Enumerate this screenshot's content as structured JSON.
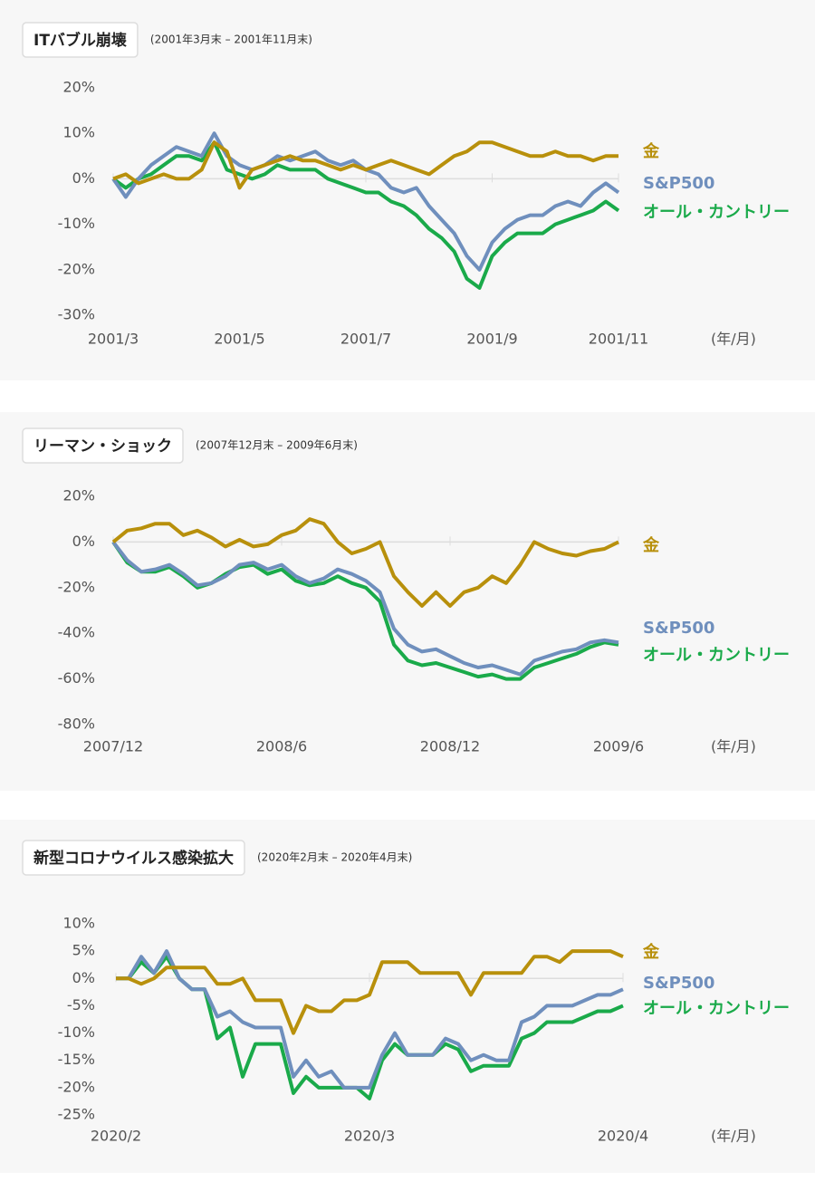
{
  "chart_data": [
    {
      "type": "line",
      "title": "ITバブル崩壊",
      "subtitle": "(2001年3月末 – 2001年11月末)",
      "xlabel": "(年/月)",
      "categories": [
        "2001/3",
        null,
        null,
        null,
        null,
        null,
        null,
        null,
        null,
        null,
        "2001/5",
        null,
        null,
        null,
        null,
        null,
        null,
        null,
        null,
        null,
        "2001/7",
        null,
        null,
        null,
        null,
        null,
        null,
        null,
        null,
        null,
        "2001/9",
        null,
        null,
        null,
        null,
        null,
        null,
        null,
        null,
        null,
        "2001/11"
      ],
      "ylim": [
        -30,
        20
      ],
      "yticks": [
        {
          "value": 20,
          "label": "20%"
        },
        {
          "value": 10,
          "label": "10%"
        },
        {
          "value": 0,
          "label": "0%"
        },
        {
          "value": -10,
          "label": "-10%"
        },
        {
          "value": -20,
          "label": "-20%"
        },
        {
          "value": -30,
          "label": "-30%"
        }
      ],
      "series": [
        {
          "name": "金",
          "color": "#b8900c",
          "values": [
            0,
            1,
            -1,
            0,
            1,
            0,
            0,
            2,
            8,
            6,
            -2,
            2,
            3,
            4,
            5,
            4,
            4,
            3,
            2,
            3,
            2,
            3,
            4,
            3,
            2,
            1,
            3,
            5,
            6,
            8,
            8,
            7,
            6,
            5,
            5,
            6,
            5,
            5,
            4,
            5,
            5
          ]
        },
        {
          "name": "S&P500",
          "color": "#6f8fbd",
          "values": [
            0,
            -4,
            0,
            3,
            5,
            7,
            6,
            5,
            10,
            5,
            3,
            2,
            3,
            5,
            4,
            5,
            6,
            4,
            3,
            4,
            2,
            1,
            -2,
            -3,
            -2,
            -6,
            -9,
            -12,
            -17,
            -20,
            -14,
            -11,
            -9,
            -8,
            -8,
            -6,
            -5,
            -6,
            -3,
            -1,
            -3
          ]
        },
        {
          "name": "オール・カントリー",
          "color": "#1aaa4a",
          "values": [
            0,
            -2,
            0,
            1,
            3,
            5,
            5,
            4,
            8,
            2,
            1,
            0,
            1,
            3,
            2,
            2,
            2,
            0,
            -1,
            -2,
            -3,
            -3,
            -5,
            -6,
            -8,
            -11,
            -13,
            -16,
            -22,
            -24,
            -17,
            -14,
            -12,
            -12,
            -12,
            -10,
            -9,
            -8,
            -7,
            -5,
            -7
          ]
        }
      ]
    },
    {
      "type": "line",
      "title": "リーマン・ショック",
      "subtitle": "(2007年12月末 – 2009年6月末)",
      "xlabel": "(年/月)",
      "categories": [
        "2007/12",
        null,
        null,
        null,
        null,
        null,
        null,
        null,
        null,
        null,
        null,
        null,
        "2008/6",
        null,
        null,
        null,
        null,
        null,
        null,
        null,
        null,
        null,
        null,
        null,
        "2008/12",
        null,
        null,
        null,
        null,
        null,
        null,
        null,
        null,
        null,
        null,
        null,
        "2009/6"
      ],
      "ylim": [
        -80,
        20
      ],
      "yticks": [
        {
          "value": 20,
          "label": "20%"
        },
        {
          "value": 0,
          "label": "0%"
        },
        {
          "value": -20,
          "label": "-20%"
        },
        {
          "value": -40,
          "label": "-40%"
        },
        {
          "value": -60,
          "label": "-60%"
        },
        {
          "value": -80,
          "label": "-80%"
        }
      ],
      "series": [
        {
          "name": "金",
          "color": "#b8900c",
          "values": [
            0,
            5,
            6,
            8,
            8,
            3,
            5,
            2,
            -2,
            1,
            -2,
            -1,
            3,
            5,
            10,
            8,
            0,
            -5,
            -3,
            0,
            -15,
            -22,
            -28,
            -22,
            -28,
            -22,
            -20,
            -15,
            -18,
            -10,
            0,
            -3,
            -5,
            -6,
            -4,
            -3,
            0
          ]
        },
        {
          "name": "S&P500",
          "color": "#6f8fbd",
          "values": [
            0,
            -8,
            -13,
            -12,
            -10,
            -14,
            -19,
            -18,
            -15,
            -10,
            -9,
            -12,
            -10,
            -15,
            -18,
            -16,
            -12,
            -14,
            -17,
            -22,
            -38,
            -45,
            -48,
            -47,
            -50,
            -53,
            -55,
            -54,
            -56,
            -58,
            -52,
            -50,
            -48,
            -47,
            -44,
            -43,
            -44
          ]
        },
        {
          "name": "オール・カントリー",
          "color": "#1aaa4a",
          "values": [
            0,
            -9,
            -13,
            -13,
            -11,
            -15,
            -20,
            -18,
            -14,
            -11,
            -10,
            -14,
            -12,
            -17,
            -19,
            -18,
            -15,
            -18,
            -20,
            -26,
            -45,
            -52,
            -54,
            -53,
            -55,
            -57,
            -59,
            -58,
            -60,
            -60,
            -55,
            -53,
            -51,
            -49,
            -46,
            -44,
            -45
          ]
        }
      ]
    },
    {
      "type": "line",
      "title": "新型コロナウイルス感染拡大",
      "subtitle": "(2020年2月末 – 2020年4月末)",
      "xlabel": "(年/月)",
      "categories": [
        "2020/2",
        null,
        null,
        null,
        null,
        null,
        null,
        null,
        null,
        null,
        null,
        null,
        null,
        null,
        null,
        null,
        null,
        null,
        null,
        null,
        "2020/3",
        null,
        null,
        null,
        null,
        null,
        null,
        null,
        null,
        null,
        null,
        null,
        null,
        null,
        null,
        null,
        null,
        null,
        null,
        null,
        "2020/4"
      ],
      "ylim": [
        -25,
        10
      ],
      "yticks": [
        {
          "value": 10,
          "label": "10%"
        },
        {
          "value": 5,
          "label": "5%"
        },
        {
          "value": 0,
          "label": "0%"
        },
        {
          "value": -5,
          "label": "-5%"
        },
        {
          "value": -10,
          "label": "-10%"
        },
        {
          "value": -15,
          "label": "-15%"
        },
        {
          "value": -20,
          "label": "-20%"
        },
        {
          "value": -25,
          "label": "-25%"
        }
      ],
      "series": [
        {
          "name": "金",
          "color": "#b8900c",
          "values": [
            0,
            0,
            -1,
            0,
            2,
            2,
            2,
            2,
            -1,
            -1,
            0,
            -4,
            -4,
            -4,
            -10,
            -5,
            -6,
            -6,
            -4,
            -4,
            -3,
            3,
            3,
            3,
            1,
            1,
            1,
            1,
            -3,
            1,
            1,
            1,
            1,
            4,
            4,
            3,
            5,
            5,
            5,
            5,
            4
          ]
        },
        {
          "name": "S&P500",
          "color": "#6f8fbd",
          "values": [
            0,
            0,
            4,
            1,
            5,
            0,
            -2,
            -2,
            -7,
            -6,
            -8,
            -9,
            -9,
            -9,
            -18,
            -15,
            -18,
            -17,
            -20,
            -20,
            -20,
            -14,
            -10,
            -14,
            -14,
            -14,
            -11,
            -12,
            -15,
            -14,
            -15,
            -15,
            -8,
            -7,
            -5,
            -5,
            -5,
            -4,
            -3,
            -3,
            -2
          ]
        },
        {
          "name": "オール・カントリー",
          "color": "#1aaa4a",
          "values": [
            0,
            0,
            3,
            1,
            4,
            0,
            -2,
            -2,
            -11,
            -9,
            -18,
            -12,
            -12,
            -12,
            -21,
            -18,
            -20,
            -20,
            -20,
            -20,
            -22,
            -15,
            -12,
            -14,
            -14,
            -14,
            -12,
            -13,
            -17,
            -16,
            -16,
            -16,
            -11,
            -10,
            -8,
            -8,
            -8,
            -7,
            -6,
            -6,
            -5
          ]
        }
      ]
    }
  ]
}
